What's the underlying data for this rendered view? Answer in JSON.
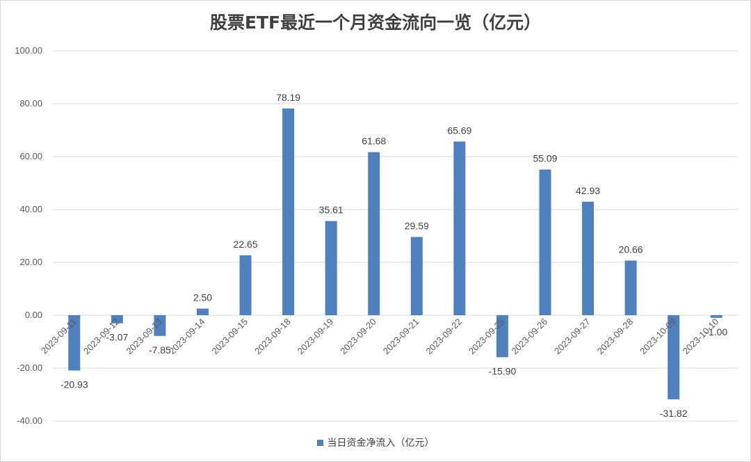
{
  "chart_data": {
    "type": "bar",
    "title": "股票ETF最近一个月资金流向一览（亿元）",
    "xlabel": "",
    "ylabel": "",
    "categories": [
      "2023-09-11",
      "2023-09-12",
      "2023-09-13",
      "2023-09-14",
      "2023-09-15",
      "2023-09-18",
      "2023-09-19",
      "2023-09-20",
      "2023-09-21",
      "2023-09-22",
      "2023-09-25",
      "2023-09-26",
      "2023-09-27",
      "2023-09-28",
      "2023-10-09",
      "2023-10-10"
    ],
    "series": [
      {
        "name": "当日资金净流入（亿元）",
        "values": [
          -20.93,
          -3.07,
          -7.85,
          2.5,
          22.65,
          78.19,
          35.61,
          61.68,
          29.59,
          65.69,
          -15.9,
          55.09,
          42.93,
          20.66,
          -31.82,
          -1.0
        ],
        "labels": [
          "-20.93",
          "-3.07",
          "-7.85",
          "2.50",
          "22.65",
          "78.19",
          "35.61",
          "61.68",
          "29.59",
          "65.69",
          "-15.90",
          "55.09",
          "42.93",
          "20.66",
          "-31.82",
          "-1.00"
        ],
        "color": "#4e81bd"
      }
    ],
    "ylim": [
      -40,
      100
    ],
    "yticks": [
      "-40.00",
      "-20.00",
      "0.00",
      "20.00",
      "40.00",
      "60.00",
      "80.00",
      "100.00"
    ],
    "grid": true,
    "legend": "bottom"
  }
}
